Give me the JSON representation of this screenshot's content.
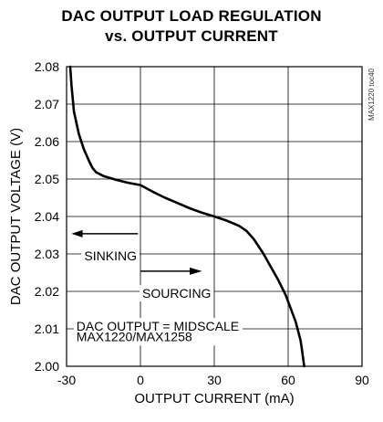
{
  "chart_data": {
    "type": "line",
    "title": "DAC OUTPUT LOAD REGULATION",
    "subtitle": "vs. OUTPUT CURRENT",
    "xlabel": "OUTPUT CURRENT (mA)",
    "ylabel": "DAC OUTPUT VOLTAGE (V)",
    "xlim": [
      -30,
      90
    ],
    "ylim": [
      2.0,
      2.08
    ],
    "x_ticks": [
      -30,
      0,
      30,
      60,
      90
    ],
    "x_tick_labels": [
      "-30",
      "0",
      "30",
      "60",
      "90"
    ],
    "y_ticks": [
      2.0,
      2.01,
      2.02,
      2.03,
      2.04,
      2.05,
      2.06,
      2.07,
      2.08
    ],
    "y_tick_labels": [
      "2.00",
      "2.01",
      "2.02",
      "2.03",
      "2.04",
      "2.05",
      "2.06",
      "2.07",
      "2.08"
    ],
    "grid": true,
    "series": [
      {
        "x": [
          -28.5,
          -28.0,
          -27.0,
          -25.0,
          -23.0,
          -21.0,
          -19.5,
          -18.0,
          -15.0,
          -10.0,
          -5.0,
          0.0,
          5.0,
          10.0,
          15.0,
          20.0,
          25.0,
          30.0,
          35.0,
          40.0,
          43.0,
          46.0,
          50.0,
          53.0,
          56.0,
          59.0,
          61.0,
          63.0,
          64.0,
          65.0,
          65.5,
          66.0,
          66.5
        ],
        "y": [
          2.08,
          2.075,
          2.068,
          2.062,
          2.058,
          2.055,
          2.053,
          2.0518,
          2.0508,
          2.0498,
          2.049,
          2.0484,
          2.0466,
          2.045,
          2.0436,
          2.0422,
          2.041,
          2.04,
          2.0389,
          2.0375,
          2.0362,
          2.034,
          2.03,
          2.0265,
          2.023,
          2.019,
          2.0155,
          2.012,
          2.0095,
          2.007,
          2.005,
          2.0025,
          2.0
        ]
      }
    ],
    "annotations": {
      "sinking": "SINKING",
      "sourcing": "SOURCING",
      "note_line1": "DAC OUTPUT = MIDSCALE",
      "note_line2": "MAX1220/MAX1258"
    },
    "side_tag": "MAX1220 toc40"
  }
}
